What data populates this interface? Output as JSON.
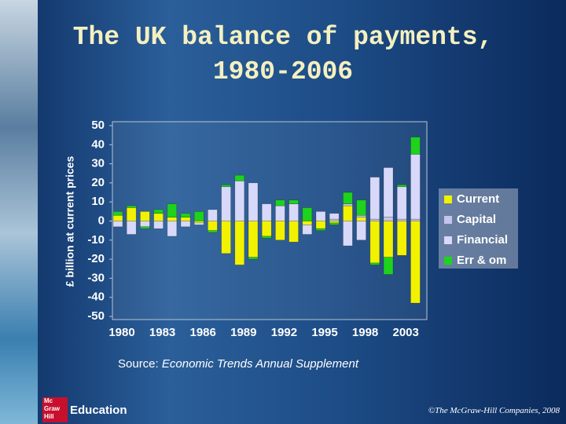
{
  "chart_data": {
    "type": "bar",
    "title": "The UK balance of payments, 1980-2006",
    "y_label": "£ billion at current prices",
    "stacked": true,
    "categories": [
      "1980",
      null,
      null,
      "1983",
      null,
      null,
      "1986",
      null,
      null,
      "1989",
      null,
      null,
      "1992",
      null,
      null,
      "1995",
      null,
      null,
      "1998",
      null,
      null,
      "2003",
      null
    ],
    "series": [
      {
        "name": "Current",
        "color": "#f2f200",
        "values": [
          3,
          7,
          5,
          4,
          2,
          2,
          -1,
          -5,
          -17,
          -23,
          -19,
          -8,
          -10,
          -11,
          -2,
          -4,
          -1,
          8,
          2,
          -22,
          -19,
          -18,
          -43
        ]
      },
      {
        "name": "Capital",
        "color": "#c4c4ee",
        "values": [
          0,
          0,
          0,
          0,
          0,
          0,
          0,
          0,
          0,
          0,
          0,
          0,
          0,
          0,
          0,
          0,
          1,
          1,
          1,
          1,
          2,
          1,
          1
        ]
      },
      {
        "name": "Financial",
        "color": "#d8d8fa",
        "values": [
          -3,
          -7,
          -3,
          -4,
          -8,
          -3,
          -1,
          6,
          18,
          21,
          20,
          9,
          8,
          9,
          -5,
          5,
          3,
          -13,
          -10,
          22,
          26,
          17,
          34
        ]
      },
      {
        "name": "Err & om",
        "color": "#1ed21e",
        "values": [
          2,
          1,
          -1,
          2,
          7,
          2,
          5,
          -1,
          1,
          3,
          -1,
          -1,
          3,
          2,
          7,
          -1,
          -1,
          6,
          8,
          -1,
          -9,
          1,
          9
        ]
      }
    ],
    "ylim": [
      -50,
      50
    ],
    "yticks": [
      -50,
      -40,
      -30,
      -20,
      -10,
      0,
      10,
      20,
      30,
      40,
      50
    ],
    "grid": false,
    "legend": "right"
  },
  "source": {
    "label": "Source:",
    "text": "Economic Trends Annual Supplement"
  },
  "logo": {
    "lines": [
      "Mc",
      "Graw",
      "Hill"
    ],
    "label": "Education"
  },
  "copyright": "©The McGraw-Hill Companies, 2008"
}
